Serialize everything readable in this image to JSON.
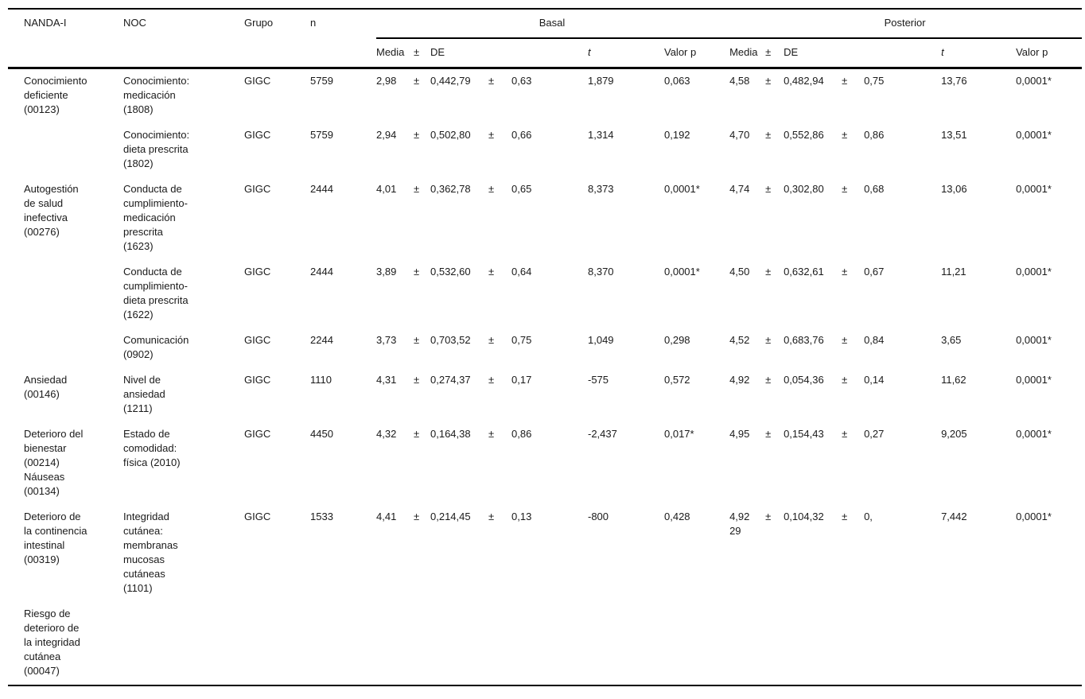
{
  "table": {
    "plus_minus": "±",
    "headers": {
      "nanda": "NANDA-I",
      "noc": "NOC",
      "grupo": "Grupo",
      "n": "n",
      "basal": "Basal",
      "posterior": "Posterior",
      "media": "Media",
      "pm": "±",
      "de": "DE",
      "t": "t",
      "valor_p": "Valor p"
    },
    "rows": [
      {
        "nanda": "Conocimiento\ndeficiente\n(00123)",
        "noc": "Conocimiento:\nmedicación\n(1808)",
        "grupo": "GIGC",
        "n": "5759",
        "basal": {
          "media": "2,98",
          "de": "0,442,79",
          "val2": "0,63",
          "t": "1,879",
          "p": "0,063"
        },
        "posterior": {
          "media": "4,58",
          "de": "0,482,94",
          "val2": "0,75",
          "t": "13,76",
          "p": "0,0001*"
        }
      },
      {
        "nanda": "",
        "noc": "Conocimiento:\ndieta prescrita\n(1802)",
        "grupo": "GIGC",
        "n": "5759",
        "basal": {
          "media": "2,94",
          "de": "0,502,80",
          "val2": "0,66",
          "t": "1,314",
          "p": "0,192"
        },
        "posterior": {
          "media": "4,70",
          "de": "0,552,86",
          "val2": "0,86",
          "t": "13,51",
          "p": "0,0001*"
        }
      },
      {
        "nanda": "Autogestión\nde salud\ninefectiva\n(00276)",
        "noc": "Conducta de\ncumplimiento-\nmedicación\nprescrita\n(1623)",
        "grupo": "GIGC",
        "n": "2444",
        "basal": {
          "media": "4,01",
          "de": "0,362,78",
          "val2": "0,65",
          "t": "8,373",
          "p": "0,0001*"
        },
        "posterior": {
          "media": "4,74",
          "de": "0,302,80",
          "val2": "0,68",
          "t": "13,06",
          "p": "0,0001*"
        }
      },
      {
        "nanda": "",
        "noc": "Conducta de\ncumplimiento-\ndieta prescrita\n(1622)",
        "grupo": "GIGC",
        "n": "2444",
        "basal": {
          "media": "3,89",
          "de": "0,532,60",
          "val2": "0,64",
          "t": "8,370",
          "p": "0,0001*"
        },
        "posterior": {
          "media": "4,50",
          "de": "0,632,61",
          "val2": "0,67",
          "t": "11,21",
          "p": "0,0001*"
        }
      },
      {
        "nanda": "",
        "noc": "Comunicación\n(0902)",
        "grupo": "GIGC",
        "n": "2244",
        "basal": {
          "media": "3,73",
          "de": "0,703,52",
          "val2": "0,75",
          "t": "1,049",
          "p": "0,298"
        },
        "posterior": {
          "media": "4,52",
          "de": "0,683,76",
          "val2": "0,84",
          "t": "3,65",
          "p": "0,0001*"
        }
      },
      {
        "nanda": "Ansiedad\n(00146)",
        "noc": "Nivel de\nansiedad\n(1211)",
        "grupo": "GIGC",
        "n": "1110",
        "basal": {
          "media": "4,31",
          "de": "0,274,37",
          "val2": "0,17",
          "t": "-575",
          "p": "0,572"
        },
        "posterior": {
          "media": "4,92",
          "de": "0,054,36",
          "val2": "0,14",
          "t": "11,62",
          "p": "0,0001*"
        }
      },
      {
        "nanda": "Deterioro del\nbienestar\n(00214)\nNáuseas\n(00134)",
        "noc": "Estado de\ncomodidad:\nfísica (2010)",
        "grupo": "GIGC",
        "n": "4450",
        "basal": {
          "media": "4,32",
          "de": "0,164,38",
          "val2": "0,86",
          "t": "-2,437",
          "p": "0,017*"
        },
        "posterior": {
          "media": "4,95",
          "de": "0,154,43",
          "val2": "0,27",
          "t": "9,205",
          "p": "0,0001*"
        }
      },
      {
        "nanda": "Deterioro de\nla continencia\nintestinal\n(00319)",
        "noc": "Integridad\ncutánea:\nmembranas\nmucosas\ncutáneas\n(1101)",
        "grupo": "GIGC",
        "n": "1533",
        "basal": {
          "media": "4,41",
          "de": "0,214,45",
          "val2": "0,13",
          "t": "-800",
          "p": "0,428"
        },
        "posterior": {
          "media": "4,92\n29",
          "de": "0,104,32",
          "val2": "0,",
          "t": "7,442",
          "p": "0,0001*"
        }
      },
      {
        "nanda": "Riesgo de\ndeterioro de\nla integridad\ncutánea\n(00047)",
        "noc": "",
        "grupo": "",
        "n": ""
      }
    ]
  }
}
